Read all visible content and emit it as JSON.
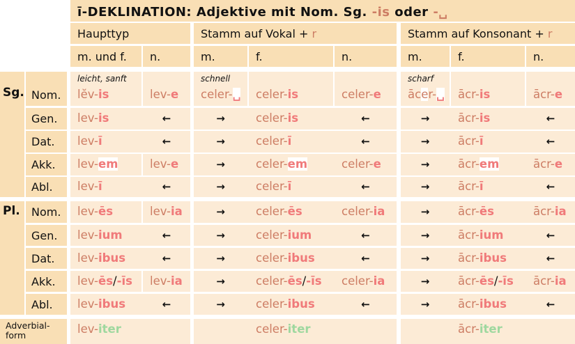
{
  "title": {
    "prefix": "ī-DEKLINATION:  Adjektive mit Nom. Sg. ",
    "end1": "-is",
    "mid": " oder ",
    "end2": "-␣"
  },
  "groups": [
    {
      "label": "Haupttyp",
      "plus": "",
      "r": ""
    },
    {
      "label": "Stamm auf Vokal + ",
      "r": "r"
    },
    {
      "label": "Stamm auf Konsonant + ",
      "r": "r"
    }
  ],
  "genders": [
    "m. und f.",
    "n.",
    "m.",
    "f.",
    "n.",
    "m.",
    "f.",
    "n."
  ],
  "glosses": {
    "0": "leicht, sanft",
    "2": "schnell",
    "5": "scharf"
  },
  "numbers": [
    "Sg.",
    "Pl."
  ],
  "rows": [
    {
      "case": "Nom.",
      "cells": [
        [
          {
            "t": "lĕv-",
            "k": "s"
          },
          {
            "t": "is",
            "k": "e"
          }
        ],
        [
          {
            "t": "lev-",
            "k": "s"
          },
          {
            "t": "e",
            "k": "e"
          }
        ],
        [
          {
            "t": "celer-",
            "k": "s"
          },
          {
            "t": "␣",
            "k": "e hl"
          }
        ],
        [
          {
            "t": "celer-",
            "k": "s"
          },
          {
            "t": "is",
            "k": "e"
          }
        ],
        [
          {
            "t": "celer-",
            "k": "s"
          },
          {
            "t": "e",
            "k": "e"
          }
        ],
        [
          {
            "t": "āc",
            "k": "s"
          },
          {
            "t": "e",
            "k": "s hl"
          },
          {
            "t": "r-",
            "k": "s"
          },
          {
            "t": "␣",
            "k": "e hl"
          }
        ],
        [
          {
            "t": "ācr-",
            "k": "s"
          },
          {
            "t": "is",
            "k": "e"
          }
        ],
        [
          {
            "t": "ācr-",
            "k": "s"
          },
          {
            "t": "e",
            "k": "e"
          }
        ]
      ]
    },
    {
      "case": "Gen.",
      "cells": [
        [
          {
            "t": "lev-",
            "k": "s"
          },
          {
            "t": "is",
            "k": "e"
          }
        ],
        "←",
        "→",
        [
          {
            "t": "celer-",
            "k": "s"
          },
          {
            "t": "is",
            "k": "e"
          }
        ],
        "←",
        "→",
        [
          {
            "t": "ācr-",
            "k": "s"
          },
          {
            "t": "is",
            "k": "e"
          }
        ],
        "←"
      ]
    },
    {
      "case": "Dat.",
      "cells": [
        [
          {
            "t": "lev-",
            "k": "s"
          },
          {
            "t": "ī",
            "k": "e"
          }
        ],
        "←",
        "→",
        [
          {
            "t": "celer-",
            "k": "s"
          },
          {
            "t": "ī",
            "k": "e"
          }
        ],
        "←",
        "→",
        [
          {
            "t": "ācr-",
            "k": "s"
          },
          {
            "t": "ī",
            "k": "e"
          }
        ],
        "←"
      ]
    },
    {
      "case": "Akk.",
      "cells": [
        [
          {
            "t": "lev-",
            "k": "s"
          },
          {
            "t": "em",
            "k": "e hl"
          }
        ],
        [
          {
            "t": "lev-",
            "k": "s"
          },
          {
            "t": "e",
            "k": "e"
          }
        ],
        "→",
        [
          {
            "t": "celer-",
            "k": "s"
          },
          {
            "t": "em",
            "k": "e hl"
          }
        ],
        [
          {
            "t": "celer-",
            "k": "s"
          },
          {
            "t": "e",
            "k": "e"
          }
        ],
        "→",
        [
          {
            "t": "ācr-",
            "k": "s"
          },
          {
            "t": "em",
            "k": "e hl"
          }
        ],
        [
          {
            "t": "ācr-",
            "k": "s"
          },
          {
            "t": "e",
            "k": "e"
          }
        ]
      ]
    },
    {
      "case": "Abl.",
      "cells": [
        [
          {
            "t": "lev-",
            "k": "s"
          },
          {
            "t": "ī",
            "k": "e"
          }
        ],
        "←",
        "→",
        [
          {
            "t": "celer-",
            "k": "s"
          },
          {
            "t": "ī",
            "k": "e"
          }
        ],
        "←",
        "→",
        [
          {
            "t": "ācr-",
            "k": "s"
          },
          {
            "t": "ī",
            "k": "e"
          }
        ],
        "←"
      ]
    },
    {
      "case": "Nom.",
      "cells": [
        [
          {
            "t": "lev-",
            "k": "s"
          },
          {
            "t": "ēs",
            "k": "e"
          }
        ],
        [
          {
            "t": "lev-",
            "k": "s"
          },
          {
            "t": "ia",
            "k": "e"
          }
        ],
        "→",
        [
          {
            "t": "celer-",
            "k": "s"
          },
          {
            "t": "ēs",
            "k": "e"
          }
        ],
        [
          {
            "t": "celer-",
            "k": "s"
          },
          {
            "t": "ia",
            "k": "e"
          }
        ],
        "→",
        [
          {
            "t": "ācr-",
            "k": "s"
          },
          {
            "t": "ēs",
            "k": "e"
          }
        ],
        [
          {
            "t": "ācr-",
            "k": "s"
          },
          {
            "t": "ia",
            "k": "e"
          }
        ]
      ]
    },
    {
      "case": "Gen.",
      "cells": [
        [
          {
            "t": "lev-",
            "k": "s"
          },
          {
            "t": "ium",
            "k": "e"
          }
        ],
        "←",
        "→",
        [
          {
            "t": "celer-",
            "k": "s"
          },
          {
            "t": "ium",
            "k": "e"
          }
        ],
        "←",
        "→",
        [
          {
            "t": "ācr-",
            "k": "s"
          },
          {
            "t": "ium",
            "k": "e"
          }
        ],
        "←"
      ]
    },
    {
      "case": "Dat.",
      "cells": [
        [
          {
            "t": "lev-",
            "k": "s"
          },
          {
            "t": "ibus",
            "k": "e"
          }
        ],
        "←",
        "→",
        [
          {
            "t": "celer-",
            "k": "s"
          },
          {
            "t": "ibus",
            "k": "e"
          }
        ],
        "←",
        "→",
        [
          {
            "t": "ācr-",
            "k": "s"
          },
          {
            "t": "ibus",
            "k": "e"
          }
        ],
        "←"
      ]
    },
    {
      "case": "Akk.",
      "cells": [
        [
          {
            "t": "lev-",
            "k": "s"
          },
          {
            "t": "ēs",
            "k": "e"
          },
          {
            "t": "/",
            "k": "x"
          },
          {
            "t": "-īs",
            "k": "e"
          }
        ],
        [
          {
            "t": "lev-",
            "k": "s"
          },
          {
            "t": "ia",
            "k": "e"
          }
        ],
        "→",
        [
          {
            "t": "celer-",
            "k": "s"
          },
          {
            "t": "ēs",
            "k": "e"
          },
          {
            "t": "/",
            "k": "x"
          },
          {
            "t": "-īs",
            "k": "e"
          }
        ],
        [
          {
            "t": "celer-",
            "k": "s"
          },
          {
            "t": "ia",
            "k": "e"
          }
        ],
        "→",
        [
          {
            "t": "ācr-",
            "k": "s"
          },
          {
            "t": "ēs",
            "k": "e"
          },
          {
            "t": "/",
            "k": "x"
          },
          {
            "t": "-īs",
            "k": "e"
          }
        ],
        [
          {
            "t": "ācr-",
            "k": "s"
          },
          {
            "t": "ia",
            "k": "e"
          }
        ]
      ]
    },
    {
      "case": "Abl.",
      "cells": [
        [
          {
            "t": "lev-",
            "k": "s"
          },
          {
            "t": "ibus",
            "k": "e"
          }
        ],
        "←",
        "→",
        [
          {
            "t": "celer-",
            "k": "s"
          },
          {
            "t": "ibus",
            "k": "e"
          }
        ],
        "←",
        "→",
        [
          {
            "t": "ācr-",
            "k": "s"
          },
          {
            "t": "ibus",
            "k": "e"
          }
        ],
        "←"
      ]
    }
  ],
  "adverb": {
    "label1": "Adverbial-",
    "label2": "form",
    "forms": [
      [
        {
          "t": "lev-",
          "k": "s"
        },
        {
          "t": "iter",
          "k": "g"
        }
      ],
      [
        {
          "t": "celer-",
          "k": "s"
        },
        {
          "t": "iter",
          "k": "g"
        }
      ],
      [
        {
          "t": "ācr-",
          "k": "s"
        },
        {
          "t": "iter",
          "k": "g"
        }
      ]
    ]
  },
  "colors": {
    "header": "#f9dfb5",
    "body": "#fcebd6",
    "stem": "#cd7d64",
    "ending": "#f07a7a",
    "adverb_ending": "#9fd89f"
  }
}
